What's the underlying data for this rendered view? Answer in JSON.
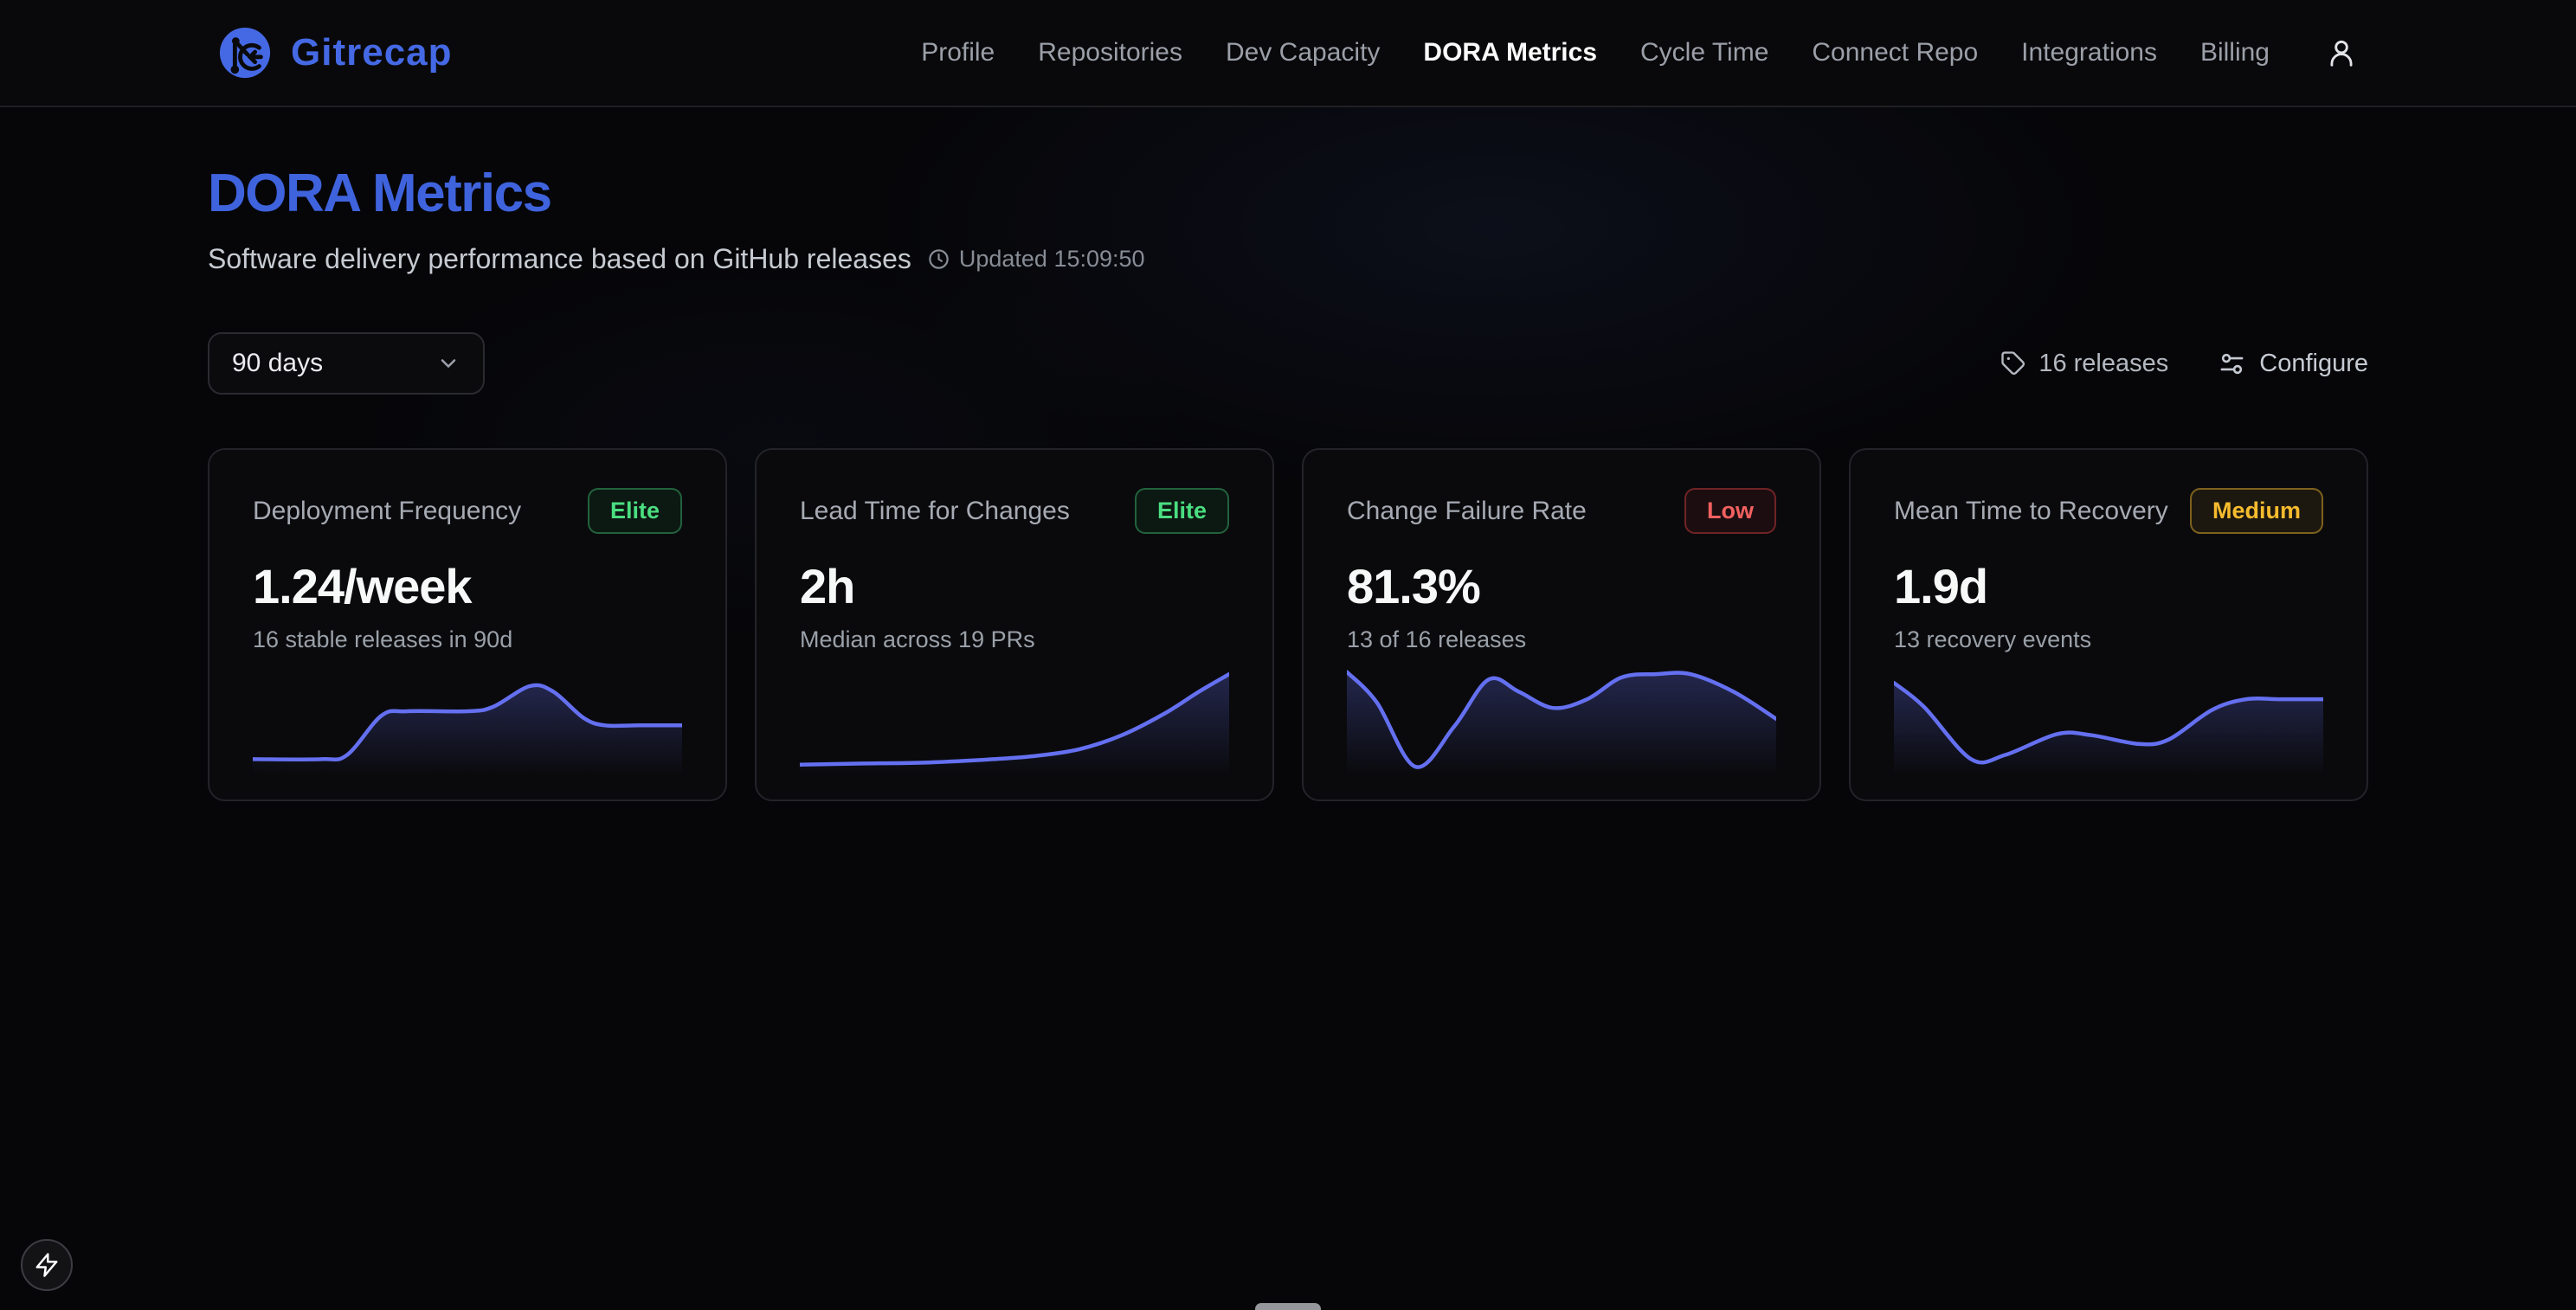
{
  "brand": {
    "name": "Gitrecap"
  },
  "nav": {
    "items": [
      {
        "label": "Profile",
        "active": false
      },
      {
        "label": "Repositories",
        "active": false
      },
      {
        "label": "Dev Capacity",
        "active": false
      },
      {
        "label": "DORA Metrics",
        "active": true
      },
      {
        "label": "Cycle Time",
        "active": false
      },
      {
        "label": "Connect Repo",
        "active": false
      },
      {
        "label": "Integrations",
        "active": false
      },
      {
        "label": "Billing",
        "active": false
      }
    ]
  },
  "page": {
    "title": "DORA Metrics",
    "subtitle": "Software delivery performance based on GitHub releases",
    "updated": "Updated 15:09:50"
  },
  "controls": {
    "period": "90 days",
    "releases_count": "16 releases",
    "configure_label": "Configure"
  },
  "cards": [
    {
      "title": "Deployment Frequency",
      "badge": "Elite",
      "badge_tone": "green",
      "value": "1.24/week",
      "subtitle": "16 stable releases in 90d"
    },
    {
      "title": "Lead Time for Changes",
      "badge": "Elite",
      "badge_tone": "green",
      "value": "2h",
      "subtitle": "Median across 19 PRs"
    },
    {
      "title": "Change Failure Rate",
      "badge": "Low",
      "badge_tone": "red",
      "value": "81.3%",
      "subtitle": "13 of 16 releases"
    },
    {
      "title": "Mean Time to Recovery",
      "badge": "Medium",
      "badge_tone": "amber",
      "value": "1.9d",
      "subtitle": "13 recovery events"
    }
  ],
  "chart_data": [
    {
      "type": "area",
      "name": "Deployment Frequency trend",
      "x": [
        0,
        0.16,
        0.22,
        0.3,
        0.36,
        0.5,
        0.56,
        0.645,
        0.7,
        0.77,
        0.82,
        0.9,
        1
      ],
      "values": [
        10,
        10,
        14,
        50,
        54,
        54,
        58,
        77,
        72,
        48,
        41,
        41,
        41
      ],
      "ylim": [
        0,
        100
      ],
      "grid": false,
      "axes": "hidden"
    },
    {
      "type": "area",
      "name": "Lead Time for Changes trend",
      "x": [
        0,
        0.15,
        0.3,
        0.45,
        0.55,
        0.65,
        0.75,
        0.85,
        0.93,
        1
      ],
      "values": [
        5,
        6,
        7,
        10,
        13,
        19,
        32,
        52,
        72,
        88
      ],
      "ylim": [
        0,
        100
      ],
      "grid": false,
      "axes": "hidden"
    },
    {
      "type": "area",
      "name": "Change Failure Rate trend",
      "x": [
        0,
        0.07,
        0.16,
        0.25,
        0.33,
        0.4,
        0.48,
        0.56,
        0.64,
        0.72,
        0.8,
        0.9,
        1
      ],
      "values": [
        90,
        62,
        3,
        40,
        83,
        72,
        57,
        65,
        85,
        88,
        88,
        72,
        47
      ],
      "ylim": [
        0,
        100
      ],
      "grid": false,
      "axes": "hidden"
    },
    {
      "type": "area",
      "name": "Mean Time to Recovery trend",
      "x": [
        0,
        0.07,
        0.18,
        0.26,
        0.38,
        0.46,
        0.57,
        0.64,
        0.74,
        0.82,
        0.9,
        1
      ],
      "values": [
        80,
        58,
        10,
        14,
        33,
        32,
        24,
        28,
        55,
        65,
        65,
        65
      ],
      "ylim": [
        0,
        100
      ],
      "grid": false,
      "axes": "hidden"
    }
  ],
  "colors": {
    "accent_blue": "#3f63dd",
    "logo_blue": "#4569e4",
    "spark_line": "#6470f0",
    "badge_green": "#4ade80",
    "badge_red": "#f26060",
    "badge_amber": "#f6bb2e"
  },
  "icons": {
    "logo": "git-branch-logo",
    "clock": "clock-icon",
    "tag": "tag-icon",
    "configure": "sliders-icon",
    "chevron": "chevron-down-icon",
    "user": "user-icon",
    "fab": "lightning-icon",
    "handle": "dock-handle"
  }
}
